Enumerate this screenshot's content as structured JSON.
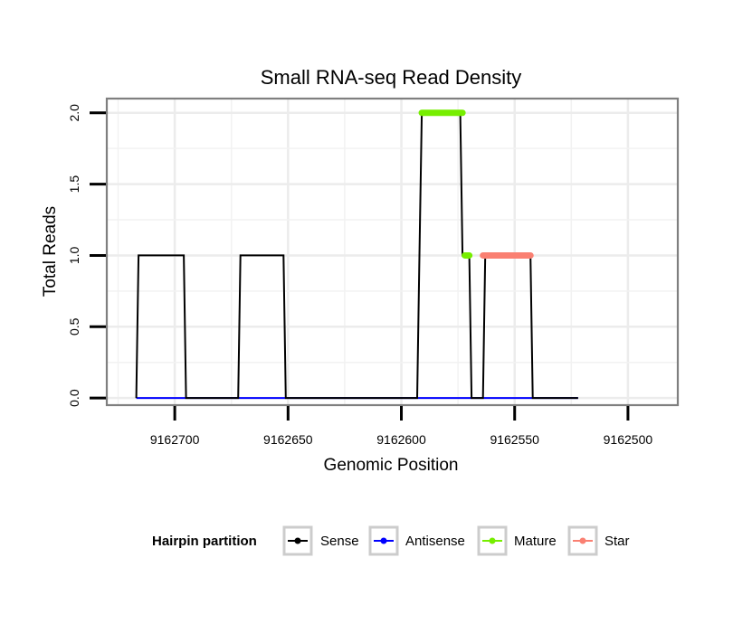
{
  "chart_data": {
    "type": "line",
    "title": "Small RNA-seq Read Density",
    "xlabel": "Genomic Position",
    "ylabel": "Total Reads",
    "x_reversed": true,
    "xlim": [
      9162730,
      9162478
    ],
    "ylim": [
      -0.05,
      2.1
    ],
    "x_ticks": [
      9162700,
      9162650,
      9162600,
      9162550,
      9162500
    ],
    "x_tick_labels": [
      "9162700",
      "9162650",
      "9162600",
      "9162550",
      "9162500"
    ],
    "y_ticks": [
      0.0,
      0.5,
      1.0,
      1.5,
      2.0
    ],
    "y_tick_labels": [
      "0.0",
      "0.5",
      "1.0",
      "1.5",
      "2.0"
    ],
    "grid": true,
    "legend": {
      "title": "Hairpin partition",
      "position": "bottom",
      "entries": [
        "Sense",
        "Antisense",
        "Mature",
        "Star"
      ]
    },
    "series": [
      {
        "name": "Sense",
        "color": "#000000",
        "style": "line",
        "x": [
          9162717,
          9162716,
          9162696,
          9162695,
          9162672,
          9162671,
          9162652,
          9162651,
          9162593,
          9162592,
          9162591,
          9162574,
          9162573,
          9162570,
          9162569,
          9162564,
          9162563,
          9162543,
          9162542,
          9162522
        ],
        "y": [
          0,
          1,
          1,
          0,
          0,
          1,
          1,
          0,
          0,
          1,
          2,
          2,
          1,
          1,
          0,
          0,
          1,
          1,
          0,
          0
        ]
      },
      {
        "name": "Antisense",
        "color": "#0000ff",
        "style": "line",
        "x": [
          9162717,
          9162522
        ],
        "y": [
          0,
          0
        ]
      },
      {
        "name": "Mature",
        "color": "#76ee00",
        "style": "thick",
        "segments": [
          {
            "x": [
              9162591,
              9162573
            ],
            "y": 2
          },
          {
            "x": [
              9162572,
              9162570
            ],
            "y": 1
          }
        ]
      },
      {
        "name": "Star",
        "color": "#fa8072",
        "style": "thick",
        "segments": [
          {
            "x": [
              9162564,
              9162543
            ],
            "y": 1
          }
        ]
      }
    ]
  }
}
